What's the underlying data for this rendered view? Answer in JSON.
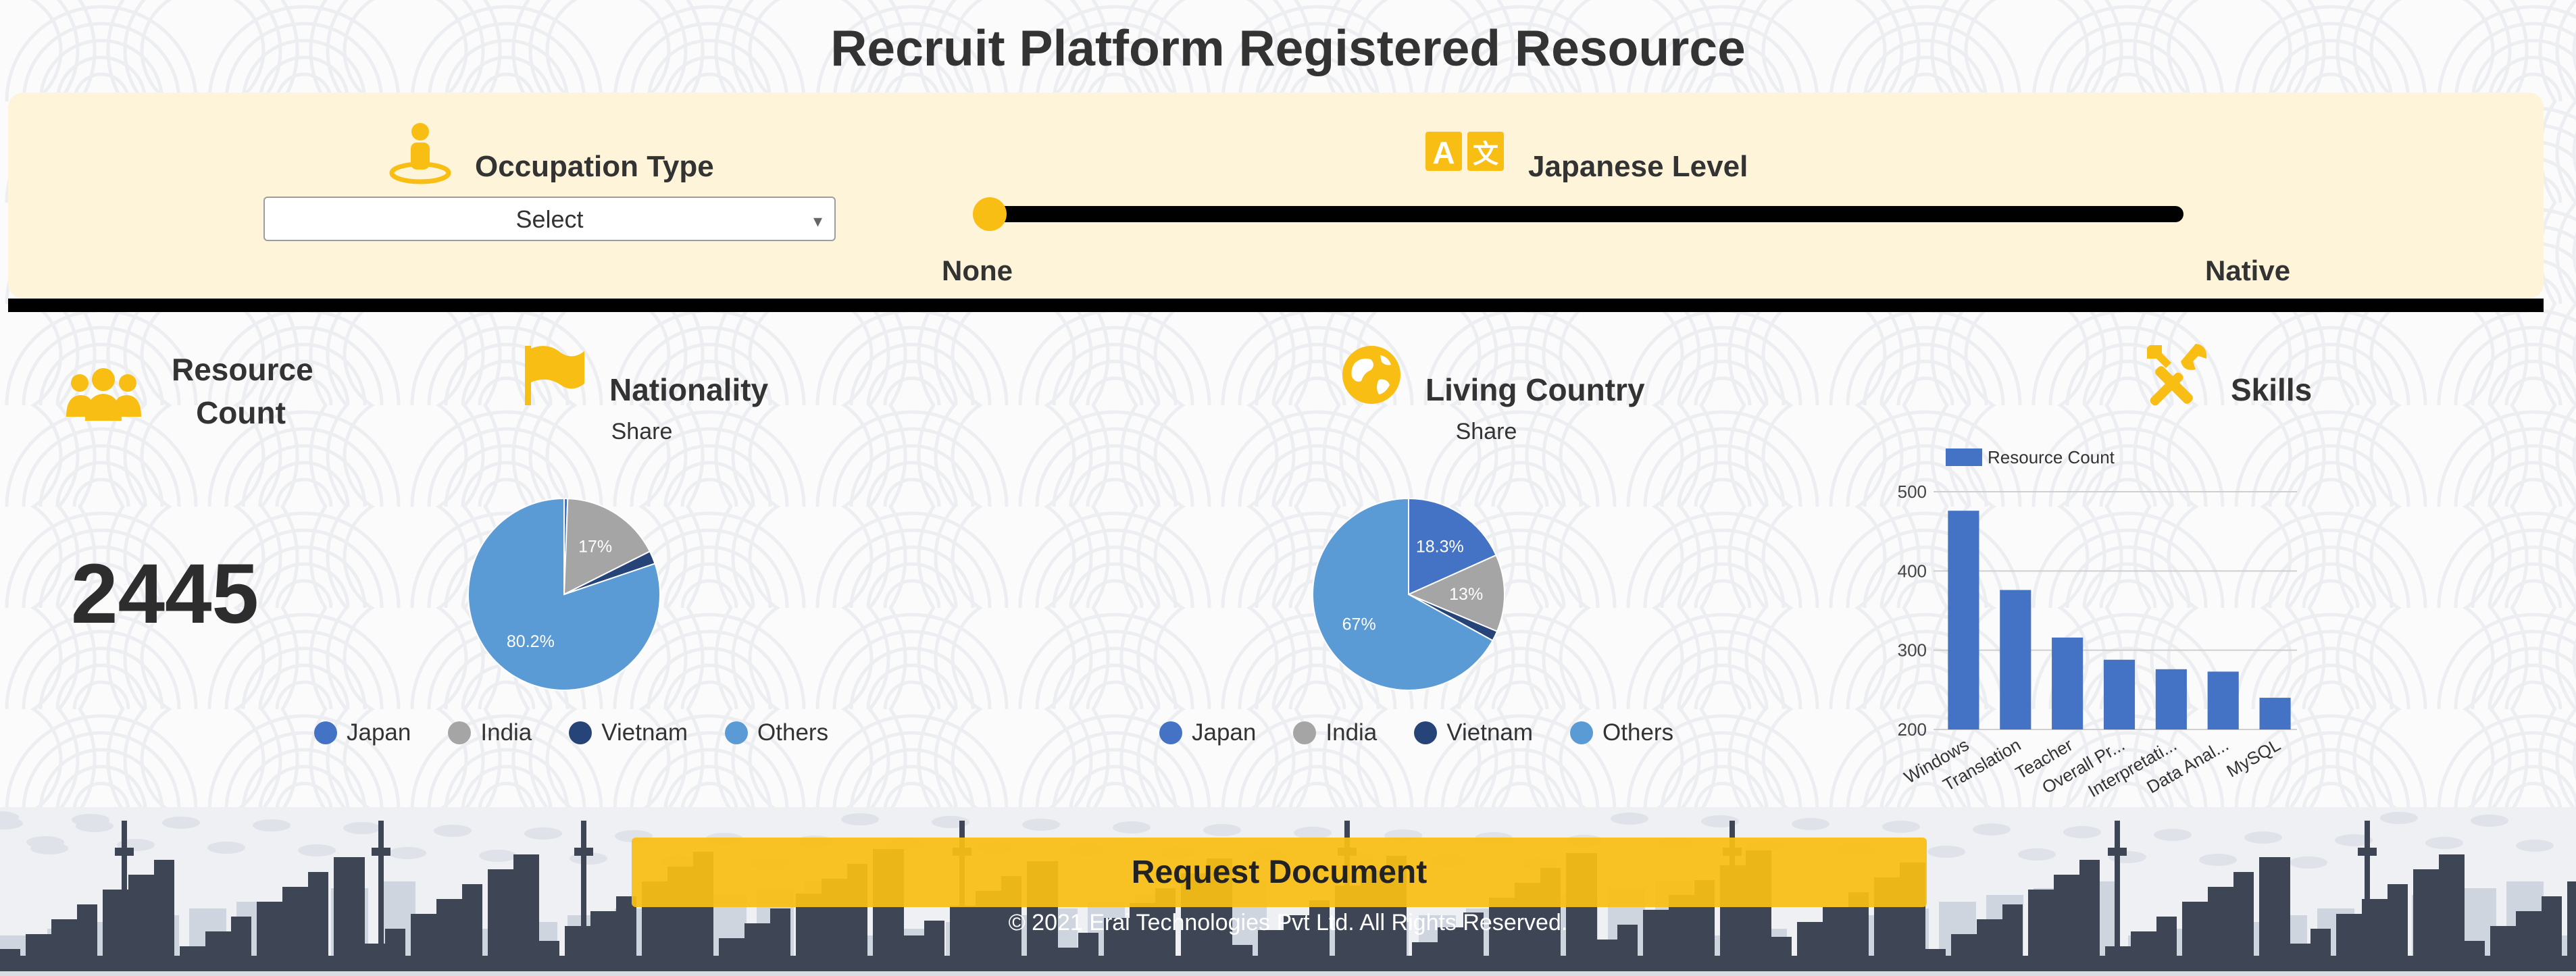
{
  "title": "Recruit Platform Registered Resource",
  "filters": {
    "occupation": {
      "label": "Occupation Type",
      "icon": "person-pin-icon",
      "select_value": "Select"
    },
    "japanese_level": {
      "label": "Japanese Level",
      "icon": "translate-icon",
      "min_label": "None",
      "max_label": "Native",
      "value_fraction": 0
    }
  },
  "resource": {
    "label_line1": "Resource",
    "label_line2": "Count",
    "value": "2445",
    "icon": "people-icon"
  },
  "nationality": {
    "label": "Nationality",
    "sub": "Share",
    "icon": "flag-icon"
  },
  "living": {
    "label": "Living Country",
    "sub": "Share",
    "icon": "globe-icon"
  },
  "skills": {
    "label": "Skills",
    "icon": "tools-icon"
  },
  "legend": [
    "Japan",
    "India",
    "Vietnam",
    "Others"
  ],
  "colors": {
    "accent": "#f9be13",
    "japan": "#4472c4",
    "india": "#a5a5a5",
    "vietnam": "#264478",
    "others": "#5b9bd5",
    "panel": "#fdf4d9"
  },
  "footer": {
    "button": "Request Document",
    "copyright": "© 2021 Erai Technologies Pvt Ltd. All Rights Reserved."
  },
  "chart_data": [
    {
      "type": "pie",
      "subtitle": "Share",
      "labels": [
        "Japan",
        "India",
        "Vietnam",
        "Others"
      ],
      "values": [
        0.6,
        17,
        2.2,
        80.2
      ],
      "data_labels": [
        "",
        "17%",
        "",
        "80.2%"
      ]
    },
    {
      "type": "pie",
      "subtitle": "Share",
      "labels": [
        "Japan",
        "India",
        "Vietnam",
        "Others"
      ],
      "values": [
        18.3,
        13,
        1.7,
        67
      ],
      "data_labels": [
        "18.3%",
        "13%",
        "",
        "67%"
      ]
    },
    {
      "type": "bar",
      "categories": [
        "Windows",
        "Translation",
        "Teacher",
        "Overall Pr...",
        "Interpretati...",
        "Data Anal...",
        "MySQL"
      ],
      "series": [
        {
          "name": "Resource Count",
          "values": [
            476,
            376,
            316,
            288,
            276,
            273,
            240
          ]
        }
      ],
      "ylim": [
        200,
        500
      ],
      "yticks": [
        200,
        300,
        400,
        500
      ],
      "legend": "top-left"
    }
  ]
}
